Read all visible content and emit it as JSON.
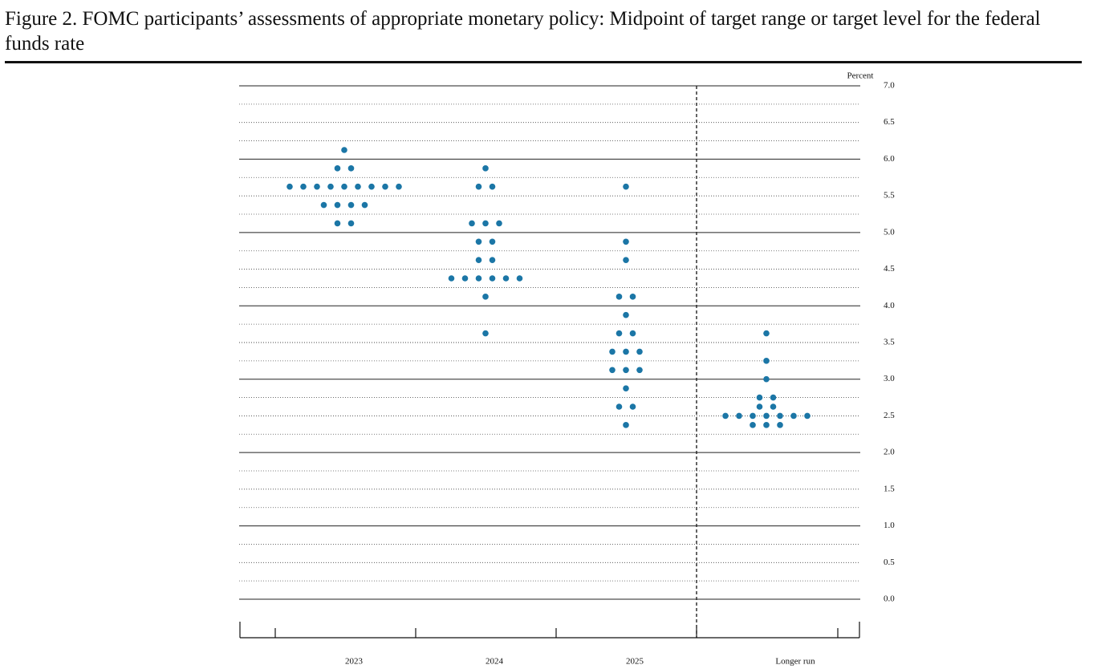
{
  "chart_data": {
    "type": "dot",
    "title": "Figure 2.  FOMC participants’ assessments of appropriate monetary policy: Midpoint of target range or target level for the federal funds rate",
    "y_label": "Percent",
    "color": "#1b76a6",
    "categories": [
      "2023",
      "2024",
      "2025",
      "Longer run"
    ],
    "values": [
      [
        6.125,
        5.875,
        5.875,
        5.625,
        5.625,
        5.625,
        5.625,
        5.625,
        5.625,
        5.625,
        5.625,
        5.625,
        5.375,
        5.375,
        5.375,
        5.375,
        5.125,
        5.125
      ],
      [
        5.875,
        5.625,
        5.625,
        5.125,
        5.125,
        5.125,
        4.875,
        4.875,
        4.625,
        4.625,
        4.375,
        4.375,
        4.375,
        4.375,
        4.375,
        4.375,
        4.125,
        3.625
      ],
      [
        5.625,
        4.875,
        4.625,
        4.125,
        4.125,
        3.875,
        3.625,
        3.625,
        3.375,
        3.375,
        3.375,
        3.125,
        3.125,
        3.125,
        2.875,
        2.625,
        2.625,
        2.375
      ],
      [
        3.625,
        3.25,
        3.0,
        2.75,
        2.75,
        2.625,
        2.625,
        2.5,
        2.5,
        2.5,
        2.5,
        2.5,
        2.5,
        2.5,
        2.375,
        2.375,
        2.375
      ]
    ],
    "ylim": [
      0,
      7
    ],
    "yticks": [
      {
        "value": 0,
        "label": "0.0"
      },
      0.5,
      {
        "value": 1,
        "label": "1.0"
      },
      1.5,
      {
        "value": 2,
        "label": "2.0"
      },
      2.5,
      {
        "value": 3,
        "label": "3.0"
      },
      3.5,
      {
        "value": 4,
        "label": "4.0"
      },
      4.5,
      {
        "value": 5,
        "label": "5.0"
      },
      5.5,
      {
        "value": 6,
        "label": "6.0"
      },
      6.5,
      {
        "value": 7,
        "label": "7.0"
      }
    ],
    "grid": true
  }
}
